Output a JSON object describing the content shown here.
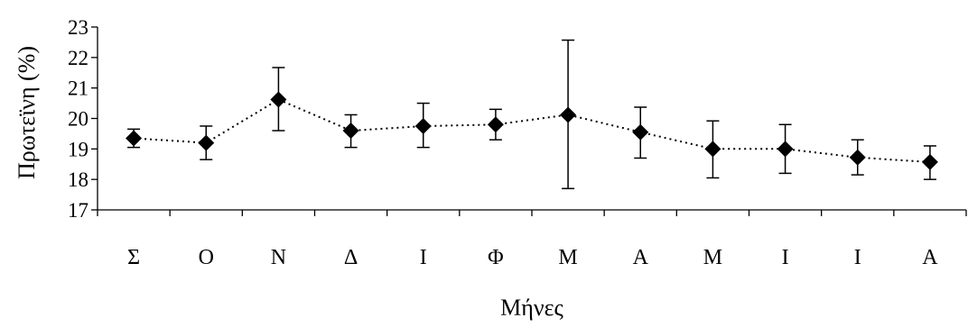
{
  "chart_data": {
    "type": "line",
    "title": "",
    "xlabel": "Μήνες",
    "ylabel": "Πρωτεϊνη (%)",
    "categories": [
      "Σ",
      "Ο",
      "Ν",
      "Δ",
      "Ι",
      "Φ",
      "Μ",
      "Α",
      "Μ",
      "Ι",
      "Ι",
      "Α"
    ],
    "ylim": [
      17,
      23
    ],
    "yticks": [
      "17",
      "18",
      "19",
      "20",
      "21",
      "22",
      "23"
    ],
    "grid": false,
    "legend": "none",
    "line_style": "dotted",
    "marker": "diamond",
    "series": [
      {
        "values": [
          19.35,
          19.2,
          20.62,
          19.6,
          19.75,
          19.8,
          20.12,
          19.55,
          19.0,
          19.0,
          18.72,
          18.57
        ],
        "error_low": [
          19.05,
          18.65,
          19.6,
          19.05,
          19.05,
          19.3,
          17.7,
          18.7,
          18.05,
          18.2,
          18.15,
          18.0
        ],
        "error_high": [
          19.65,
          19.75,
          21.67,
          20.12,
          20.5,
          20.3,
          22.57,
          20.37,
          19.92,
          19.8,
          19.3,
          19.1
        ]
      }
    ],
    "colors": {
      "line": "#000000",
      "marker": "#000000",
      "axis": "#000000"
    }
  }
}
